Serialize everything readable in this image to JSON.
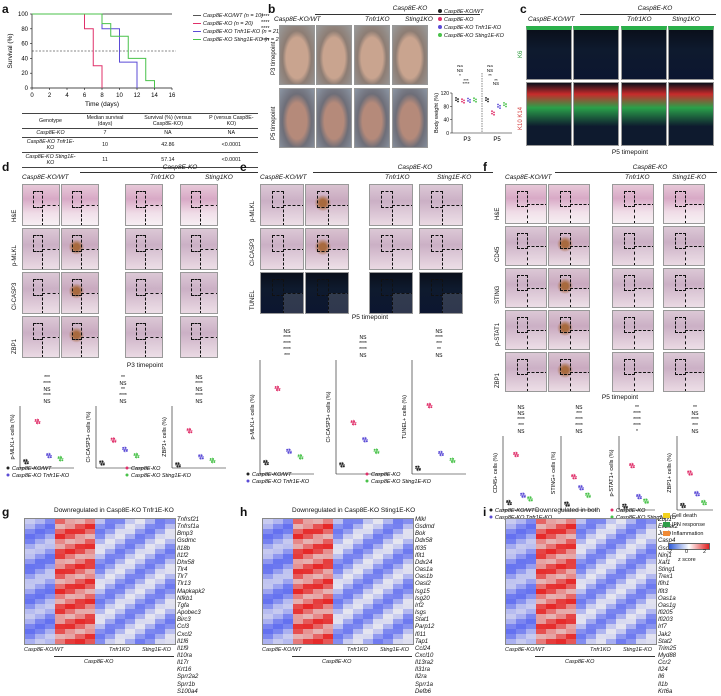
{
  "panels": {
    "a": {
      "label": "a",
      "chart_data": {
        "type": "line",
        "ylabel": "Survival (%)",
        "xlabel": "Time (days)",
        "xticks": [
          "0",
          "2",
          "4",
          "6",
          "8",
          "10",
          "12",
          "14",
          "16"
        ],
        "yticks": [
          "0",
          "20",
          "40",
          "60",
          "80",
          "100"
        ],
        "xlim": [
          0,
          16
        ],
        "ylim": [
          0,
          100
        ],
        "series": [
          {
            "name": "Casp8E-KO/WT (n = 10)",
            "color": "#555555",
            "x": [
              0,
              16
            ],
            "y": [
              100,
              100
            ]
          },
          {
            "name": "Casp8E-KO (n = 20)",
            "color": "#e0306a",
            "x": [
              0,
              6,
              6,
              7,
              7,
              8,
              8
            ],
            "y": [
              100,
              100,
              80,
              80,
              30,
              30,
              0
            ]
          },
          {
            "name": "Casp8E-KO Tnfr1E-KO (n = 21)",
            "color": "#5b4bd6",
            "x": [
              0,
              8,
              8,
              10,
              10,
              12,
              12
            ],
            "y": [
              100,
              100,
              80,
              80,
              35,
              35,
              0
            ]
          },
          {
            "name": "Casp8E-KO Sting1E-KO (n = 23)",
            "color": "#49c24a",
            "x": [
              0,
              8,
              8,
              9,
              9,
              11,
              11,
              13,
              13,
              14,
              14
            ],
            "y": [
              100,
              100,
              87,
              87,
              70,
              70,
              40,
              40,
              10,
              10,
              0
            ]
          }
        ],
        "legend": [
          "Casp8E-KO/WT (n = 10)",
          "Casp8E-KO (n = 20)",
          "Casp8E-KO Tnfr1E-KO (n = 21)",
          "Casp8E-KO Sting1E-KO (n = 23)"
        ],
        "significance": [
          "****",
          "****",
          "****",
          "****"
        ],
        "dashed_line_y": 50
      },
      "table": {
        "headers": [
          "Genotype",
          "Median survival (days)",
          "Survival (%) (versus Casp8E-KO)",
          "P (versus Casp8E-KO)"
        ],
        "rows": [
          [
            "Casp8E-KO",
            "7",
            "NA",
            "NA"
          ],
          [
            "Casp8E-KO Tnfr1E-KO",
            "10",
            "42.86",
            "<0.0001"
          ],
          [
            "Casp8E-KO Sting1E-KO",
            "11",
            "57.14",
            "<0.0001"
          ]
        ]
      }
    },
    "b": {
      "label": "b",
      "group_header": "Casp8E-KO",
      "columns": [
        "Casp8E-KO/WT",
        "",
        "Tnfr1KO",
        "Sting1KO"
      ],
      "rows": [
        "P3 timepoint",
        "P5 timepoint"
      ],
      "legend": [
        "Casp8E-KO/WT",
        "Casp8E-KO",
        "Casp8E-KO Tnfr1E-KO",
        "Casp8E-KO Sting1E-KO"
      ],
      "chart": {
        "ylabel": "Body weight (%)",
        "xticks": [
          "P3",
          "P5"
        ],
        "yticks": [
          "0",
          "40",
          "80",
          "120"
        ],
        "significance": [
          "NS",
          "NS",
          "NS",
          "NS",
          "*",
          "**",
          "***",
          "**",
          "****",
          "NS"
        ]
      }
    },
    "c": {
      "label": "c",
      "group_header": "Casp8E-KO",
      "columns": [
        "Casp8E-KO/WT",
        "",
        "Tnfr1KO",
        "Sting1KO"
      ],
      "row_labels": [
        "K6",
        "K10 K14"
      ],
      "footer": "P5 timepoint"
    },
    "d": {
      "label": "d",
      "group_header": "Casp8E-KO",
      "columns": [
        "Casp8E-KO/WT",
        "",
        "Tnfr1KO",
        "Sting1KO"
      ],
      "rows": [
        "H&E",
        "p-MLKL",
        "Cl-CASP3",
        "ZBP1"
      ],
      "footer": "P3 timepoint",
      "charts": [
        {
          "ylabel": "p-MLKL+ cells (%)",
          "sig": [
            "NS",
            "****",
            "NS",
            "****",
            "***"
          ]
        },
        {
          "ylabel": "Cl-CASP3+ cells (%)",
          "sig": [
            "NS",
            "****",
            "**",
            "NS",
            "**"
          ]
        },
        {
          "ylabel": "ZBP1+ cells (%)",
          "sig": [
            "NS",
            "****",
            "NS",
            "****",
            "NS"
          ]
        }
      ],
      "legend": [
        "Casp8E-KO/WT",
        "Casp8E-KO",
        "Casp8E-KO Tnfr1E-KO",
        "Casp8E-KO Sting1E-KO"
      ]
    },
    "e": {
      "label": "e",
      "group_header": "Casp8E-KO",
      "columns": [
        "Casp8E-KO/WT",
        "",
        "Tnfr1KO",
        "Sting1E-KO"
      ],
      "rows": [
        "p-MLKL",
        "Cl-CASP3",
        "TUNEL"
      ],
      "footer": "P5 timepoint",
      "charts": [
        {
          "ylabel": "p-MLKL+ cells (%)",
          "sig": [
            "***",
            "****",
            "****",
            "****",
            "NS"
          ]
        },
        {
          "ylabel": "Cl-CASP3+ cells (%)",
          "sig": [
            "NS",
            "****",
            "****",
            "NS"
          ]
        },
        {
          "ylabel": "TUNEL+ cells (%)",
          "sig": [
            "NS",
            "**",
            "***",
            "****",
            "NS"
          ]
        }
      ],
      "legend": [
        "Casp8E-KO/WT",
        "Casp8E-KO",
        "Casp8E-KO Tnfr1E-KO",
        "Casp8E-KO Sting1E-KO"
      ]
    },
    "f": {
      "label": "f",
      "group_header": "Casp8E-KO",
      "columns": [
        "Casp8E-KO/WT",
        "",
        "Tnfr1KO",
        "Sting1E-KO"
      ],
      "rows": [
        "H&E",
        "CD45",
        "STING",
        "p-STAT1",
        "ZBP1"
      ],
      "footer": "P5 timepoint",
      "charts": [
        {
          "ylabel": "CD45+ cells (%)",
          "sig": [
            "NS",
            "***",
            "****",
            "NS",
            "NS"
          ]
        },
        {
          "ylabel": "STING+ cells (%)",
          "sig": [
            "NS",
            "****",
            "****",
            "***",
            "NS"
          ]
        },
        {
          "ylabel": "p-STAT1+ cells (%)",
          "sig": [
            "*",
            "****",
            "****",
            "****",
            "**"
          ]
        },
        {
          "ylabel": "ZBP1+ cells (%)",
          "sig": [
            "NS",
            "***",
            "****",
            "NS",
            "**"
          ]
        }
      ],
      "legend": [
        "Casp8E-KO/WT",
        "Casp8E-KO",
        "Casp8E-KO Tnfr1E-KO",
        "Casp8E-KO Sting1E-KO"
      ]
    },
    "g": {
      "label": "g",
      "title": "Downregulated in Casp8E-KO Tnfr1E-KO",
      "genes": [
        "Tnfrsf21",
        "Tnfrsf1a",
        "Bmp3",
        "Gsdmc",
        "Il18b",
        "Il1f2",
        "Dhx58",
        "Tlr4",
        "Tlr7",
        "Tlr13",
        "Mapkapk2",
        "Nfkb1",
        "Tgfa",
        "Apobec3",
        "Birc3",
        "Ccl3",
        "Cxcl2",
        "Il1f6",
        "Il1f9",
        "Il10ra",
        "Il17r",
        "Krt16",
        "Sprr2a2",
        "Sprr1b",
        "S100a4"
      ],
      "xlabels": [
        "Casp8E-KO/WT",
        "Tnfr1KO",
        "Sting1E-KO"
      ],
      "group_label": "Casp8E-KO"
    },
    "h": {
      "label": "h",
      "title": "Downregulated in Casp8E-KO Sting1E-KO",
      "genes": [
        "Mlkl",
        "Gsdmd",
        "Bok",
        "Ddx58",
        "Ifi35",
        "Ifit1",
        "Ddx24",
        "Oas1a",
        "Oas1b",
        "Oasl2",
        "Isg15",
        "Isg20",
        "Irf2",
        "Isgs",
        "Stat1",
        "Parp12",
        "Ifi11",
        "Tap1",
        "Ccl24",
        "Cxcl10",
        "Il13ra2",
        "Il31ra",
        "Il2ra",
        "Sprr1a",
        "Defb6"
      ],
      "xlabels": [
        "Casp8E-KO/WT",
        "Tnfr1KO",
        "Sting1E-KO"
      ],
      "group_label": "Casp8E-KO"
    },
    "i": {
      "label": "i",
      "title": "Downregulated in both",
      "genes": [
        "Zbp1",
        "Eif2ak2",
        "Junb",
        "Casp4",
        "Gsdmc2",
        "Ninj1",
        "Xaf1",
        "Sting1",
        "Trex1",
        "Ifih1",
        "Ifit3",
        "Oas1a",
        "Oas1g",
        "Ifi205",
        "Ifi203",
        "Irf7",
        "Jak2",
        "Stat2",
        "Trim25",
        "Myd88",
        "Ccr2",
        "Il24",
        "Il6",
        "Il1b",
        "Krt6a"
      ],
      "xlabels": [
        "Casp8E-KO/WT",
        "Tnfr1KO",
        "Sting1E-KO"
      ],
      "group_label": "Casp8E-KO",
      "legend": [
        "Cell death",
        "IFN response",
        "Inflammation"
      ],
      "legend_colors": [
        "#f2d21e",
        "#2e9c48",
        "#f08a36"
      ],
      "colorbar_ticks": [
        "-2",
        "0",
        "2"
      ],
      "colorbar_label": "z score"
    }
  }
}
